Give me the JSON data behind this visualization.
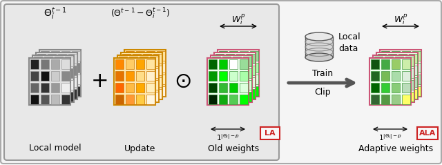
{
  "gray_grid": [
    "#222222",
    "#777777",
    "#aaaaaa",
    "#dddddd",
    "#444444",
    "#111111",
    "#cccccc",
    "#888888",
    "#666666",
    "#333333",
    "#999999",
    "#eeeeee",
    "#111111",
    "#555555",
    "#bbbbbb",
    "#333333"
  ],
  "orange_grid": [
    "#ff8800",
    "#ffcc66",
    "#ffa500",
    "#ffe4a0",
    "#e67300",
    "#ff9900",
    "#ffdd88",
    "#fff0cc",
    "#ff6600",
    "#ffbb44",
    "#ffaa00",
    "#ffeebb",
    "#cc6600",
    "#ff9933",
    "#ffcc44",
    "#fff5dd"
  ],
  "green_old_grid": [
    "#006600",
    "#00cc00",
    "#ffffff",
    "#99dd99",
    "#009900",
    "#00ff00",
    "#ccffcc",
    "#aaffaa",
    "#004400",
    "#33bb33",
    "#00cc00",
    "#ddffdd",
    "#002200",
    "#11aa11",
    "#55cc55",
    "#00ff00"
  ],
  "green_new_grid": [
    "#115511",
    "#44aa44",
    "#99cc66",
    "#cceeaa",
    "#226622",
    "#77bb55",
    "#aaddaa",
    "#ddeedd",
    "#006600",
    "#33cc33",
    "#88cc77",
    "#bbddbb",
    "#336633",
    "#559944",
    "#99cc88",
    "#ffff66"
  ],
  "label_local": "Local model",
  "label_update": "Update",
  "label_old": "Old weights",
  "label_adaptive": "Adaptive weights",
  "label_LA": "LA",
  "label_ALA": "ALA",
  "label_local_data": "Local\ndata",
  "text_theta_local": "$\\Theta_i^{t-1}$",
  "text_theta_update": "$(\\Theta^{t-1} - \\Theta_i^{t-1})$",
  "text_wi_p": "$W_i^p$",
  "text_ones": "$1^{|\\Theta_i|-p}$",
  "outer_bg": "#f5f5f5",
  "inner_bg": "#e8e8e8",
  "outer_edge": "#aaaaaa",
  "inner_edge": "#999999"
}
